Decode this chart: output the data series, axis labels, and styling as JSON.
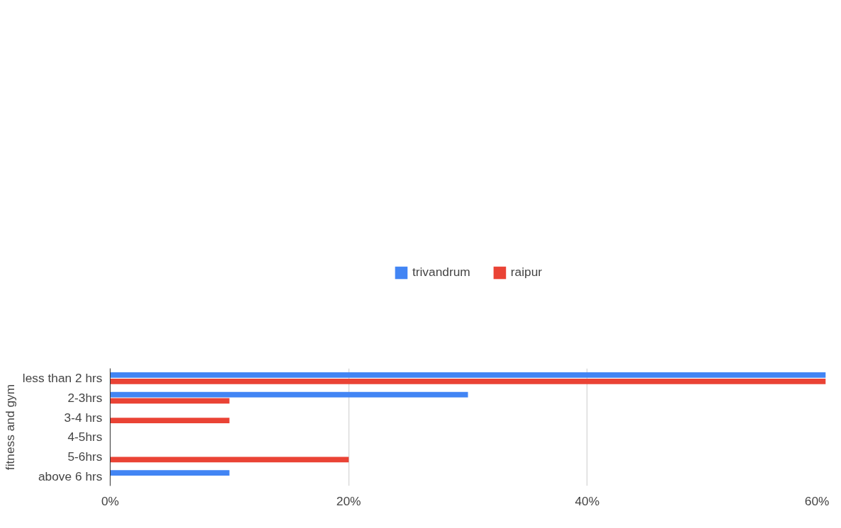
{
  "chart_data": {
    "type": "bar",
    "orientation": "horizontal",
    "ylabel": "fitness and gym",
    "categories": [
      "less than 2 hrs",
      "2-3hrs",
      "3-4 hrs",
      "4-5hrs",
      "5-6hrs",
      "above 6 hrs"
    ],
    "series": [
      {
        "name": "trivandrum",
        "color": "#4285f4",
        "values": [
          60,
          30,
          0,
          0,
          0,
          10
        ]
      },
      {
        "name": "raipur",
        "color": "#ea4335",
        "values": [
          60,
          10,
          10,
          0,
          20,
          0
        ]
      }
    ],
    "xlim": [
      0,
      60
    ],
    "xticks": [
      {
        "value": 0,
        "label": "0%"
      },
      {
        "value": 20,
        "label": "20%"
      },
      {
        "value": 40,
        "label": "40%"
      },
      {
        "value": 60,
        "label": "60%"
      }
    ],
    "grid": "x",
    "legend": "top"
  }
}
